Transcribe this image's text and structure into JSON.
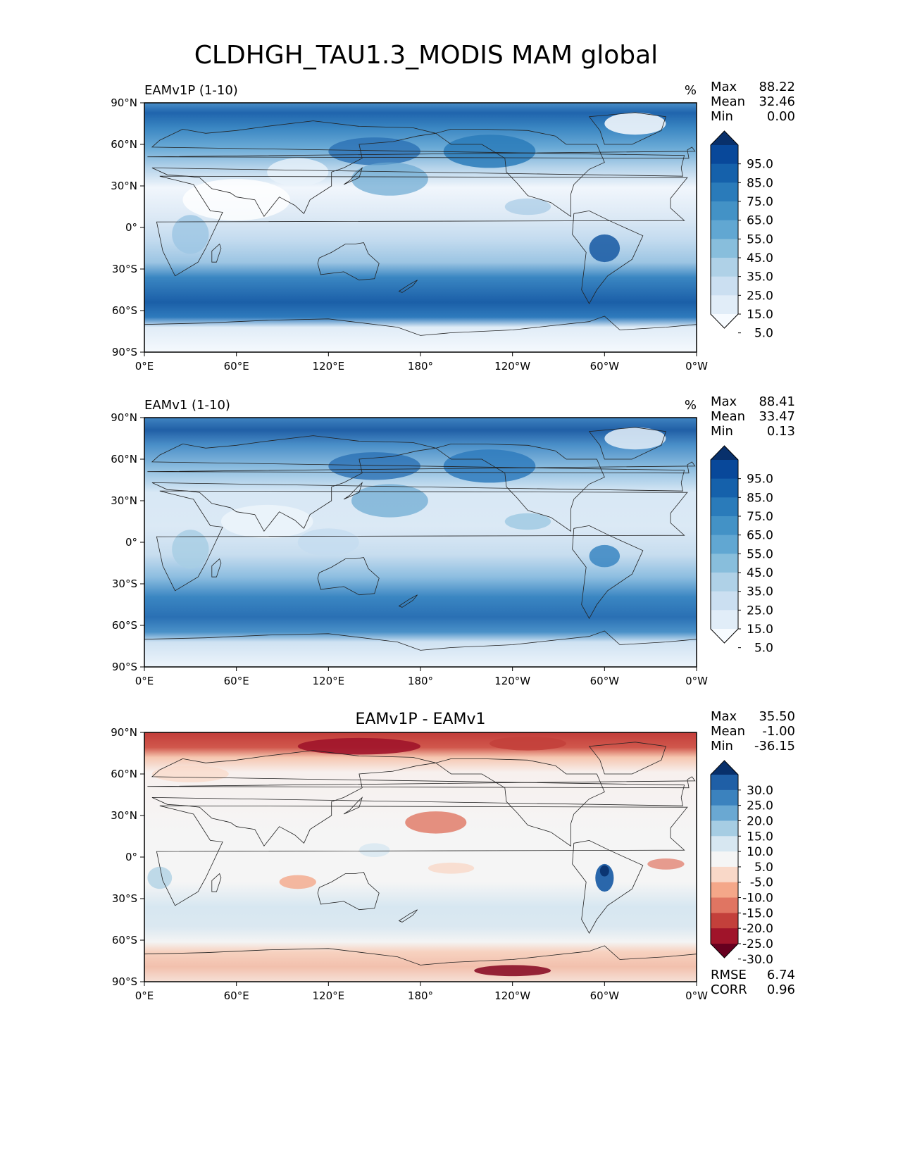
{
  "figure": {
    "title": "CLDHGH_TAU1.3_MODIS MAM global"
  },
  "axes": {
    "lat_ticks": [
      "90°N",
      "60°N",
      "30°N",
      "0°",
      "30°S",
      "60°S",
      "90°S"
    ],
    "lon_ticks": [
      "0°E",
      "60°E",
      "120°E",
      "180°",
      "120°W",
      "60°W",
      "0°W"
    ]
  },
  "panels": [
    {
      "id": "test",
      "left_title": "EAMv1P (1-10)",
      "center_title": "",
      "units": "%",
      "stats": [
        {
          "label": "Max",
          "value": "88.22"
        },
        {
          "label": "Mean",
          "value": "32.46"
        },
        {
          "label": "Min",
          "value": "0.00"
        }
      ],
      "colormap": "Blues",
      "colorbar_labels": [
        "95.0",
        "85.0",
        "75.0",
        "65.0",
        "55.0",
        "45.0",
        "35.0",
        "25.0",
        "15.0",
        "5.0"
      ],
      "colorbar_colors": [
        "#08306b",
        "#08489a",
        "#1561ab",
        "#2a7bba",
        "#4392c6",
        "#61a7d2",
        "#88bedc",
        "#afd1e7",
        "#cbdff1",
        "#e1edf8",
        "#f7fbff"
      ],
      "footer_stats": []
    },
    {
      "id": "ref",
      "left_title": "EAMv1 (1-10)",
      "center_title": "",
      "units": "%",
      "stats": [
        {
          "label": "Max",
          "value": "88.41"
        },
        {
          "label": "Mean",
          "value": "33.47"
        },
        {
          "label": "Min",
          "value": "0.13"
        }
      ],
      "colormap": "Blues",
      "colorbar_labels": [
        "95.0",
        "85.0",
        "75.0",
        "65.0",
        "55.0",
        "45.0",
        "35.0",
        "25.0",
        "15.0",
        "5.0"
      ],
      "colorbar_colors": [
        "#08306b",
        "#08489a",
        "#1561ab",
        "#2a7bba",
        "#4392c6",
        "#61a7d2",
        "#88bedc",
        "#afd1e7",
        "#cbdff1",
        "#e1edf8",
        "#f7fbff"
      ],
      "footer_stats": []
    },
    {
      "id": "diff",
      "left_title": "",
      "center_title": "EAMv1P - EAMv1",
      "units": "",
      "stats": [
        {
          "label": "Max",
          "value": "35.50"
        },
        {
          "label": "Mean",
          "value": "-1.00"
        },
        {
          "label": "Min",
          "value": "-36.15"
        }
      ],
      "colormap": "RdBu",
      "colorbar_labels": [
        "30.0",
        "25.0",
        "20.0",
        "15.0",
        "10.0",
        "5.0",
        "-5.0",
        "-10.0",
        "-15.0",
        "-20.0",
        "-25.0",
        "-30.0"
      ],
      "colorbar_colors": [
        "#08306b",
        "#1f5fa6",
        "#3b82be",
        "#6aa8d2",
        "#a6cde3",
        "#d7e7f1",
        "#f5f5f5",
        "#f9d8c8",
        "#f4a789",
        "#e07562",
        "#c3403b",
        "#a0142a",
        "#67001f"
      ],
      "footer_stats": [
        {
          "label": "RMSE",
          "value": "6.74"
        },
        {
          "label": "CORR",
          "value": "0.96"
        }
      ]
    }
  ]
}
